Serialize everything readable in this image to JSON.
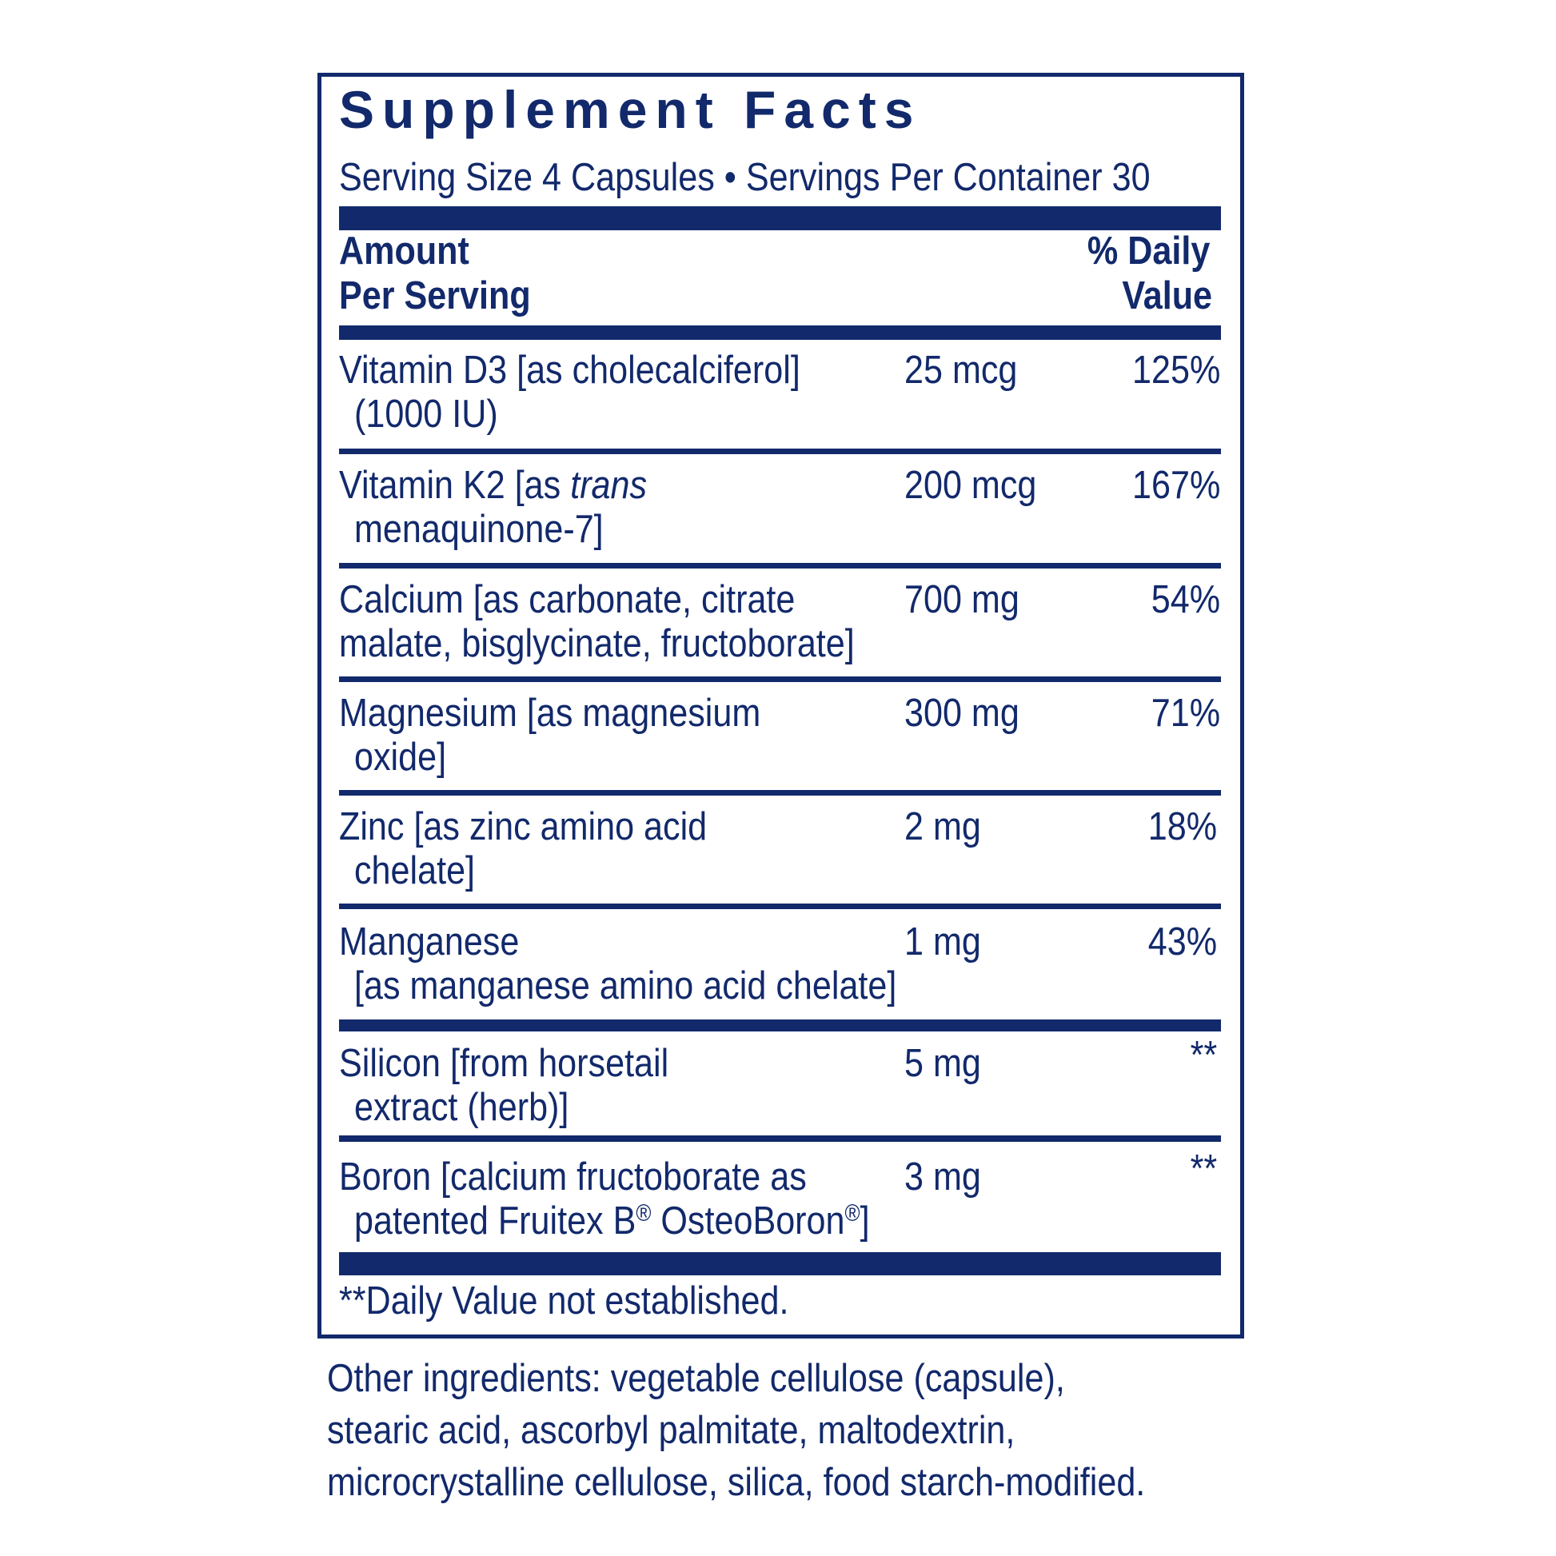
{
  "title": "Supplement Facts",
  "serving": "Serving Size 4 Capsules • Servings Per Container 30",
  "header": {
    "amount": [
      "Amount",
      "Per Serving"
    ],
    "daily_value": [
      "% Daily",
      "Value"
    ]
  },
  "rows": [
    {
      "name": [
        [
          "Vitamin D3 [as cholecalciferol]"
        ],
        [
          "(1000 IU)"
        ]
      ],
      "amount": "25 mcg",
      "daily_value": "125%"
    },
    {
      "name": [
        [
          "Vitamin K2 [as ",
          "trans"
        ],
        [
          "menaquinone-7]"
        ]
      ],
      "amount": "200 mcg",
      "daily_value": "167%"
    },
    {
      "name": [
        [
          "Calcium [as carbonate, citrate"
        ],
        [
          "malate, bisglycinate, fructoborate]"
        ]
      ],
      "amount": "700 mg",
      "daily_value": "54%"
    },
    {
      "name": [
        [
          "Magnesium [as magnesium"
        ],
        [
          "oxide]"
        ]
      ],
      "amount": "300 mg",
      "daily_value": "71%"
    },
    {
      "name": [
        [
          "Zinc [as zinc amino acid"
        ],
        [
          "chelate]"
        ]
      ],
      "amount": "2 mg",
      "daily_value": "18%"
    },
    {
      "name": [
        [
          "Manganese"
        ],
        [
          "[as manganese amino acid chelate]"
        ]
      ],
      "amount": "1 mg",
      "daily_value": "43%"
    },
    {
      "name": [
        [
          "Silicon [from horsetail"
        ],
        [
          "extract (herb)]"
        ]
      ],
      "amount": "5 mg",
      "daily_value": "**"
    },
    {
      "name": [
        [
          "Boron [calcium fructoborate as"
        ],
        [
          "patented Fruitex B",
          "®",
          " OsteoBoron",
          "®",
          "]"
        ]
      ],
      "amount": "3 mg",
      "daily_value": "**"
    }
  ],
  "footnote": "**Daily Value not established.",
  "other_ingredients": [
    "Other ingredients: vegetable cellulose (capsule),",
    "stearic acid, ascorbyl palmitate, maltodextrin,",
    "microcrystalline cellulose, silica, food starch-modified."
  ]
}
